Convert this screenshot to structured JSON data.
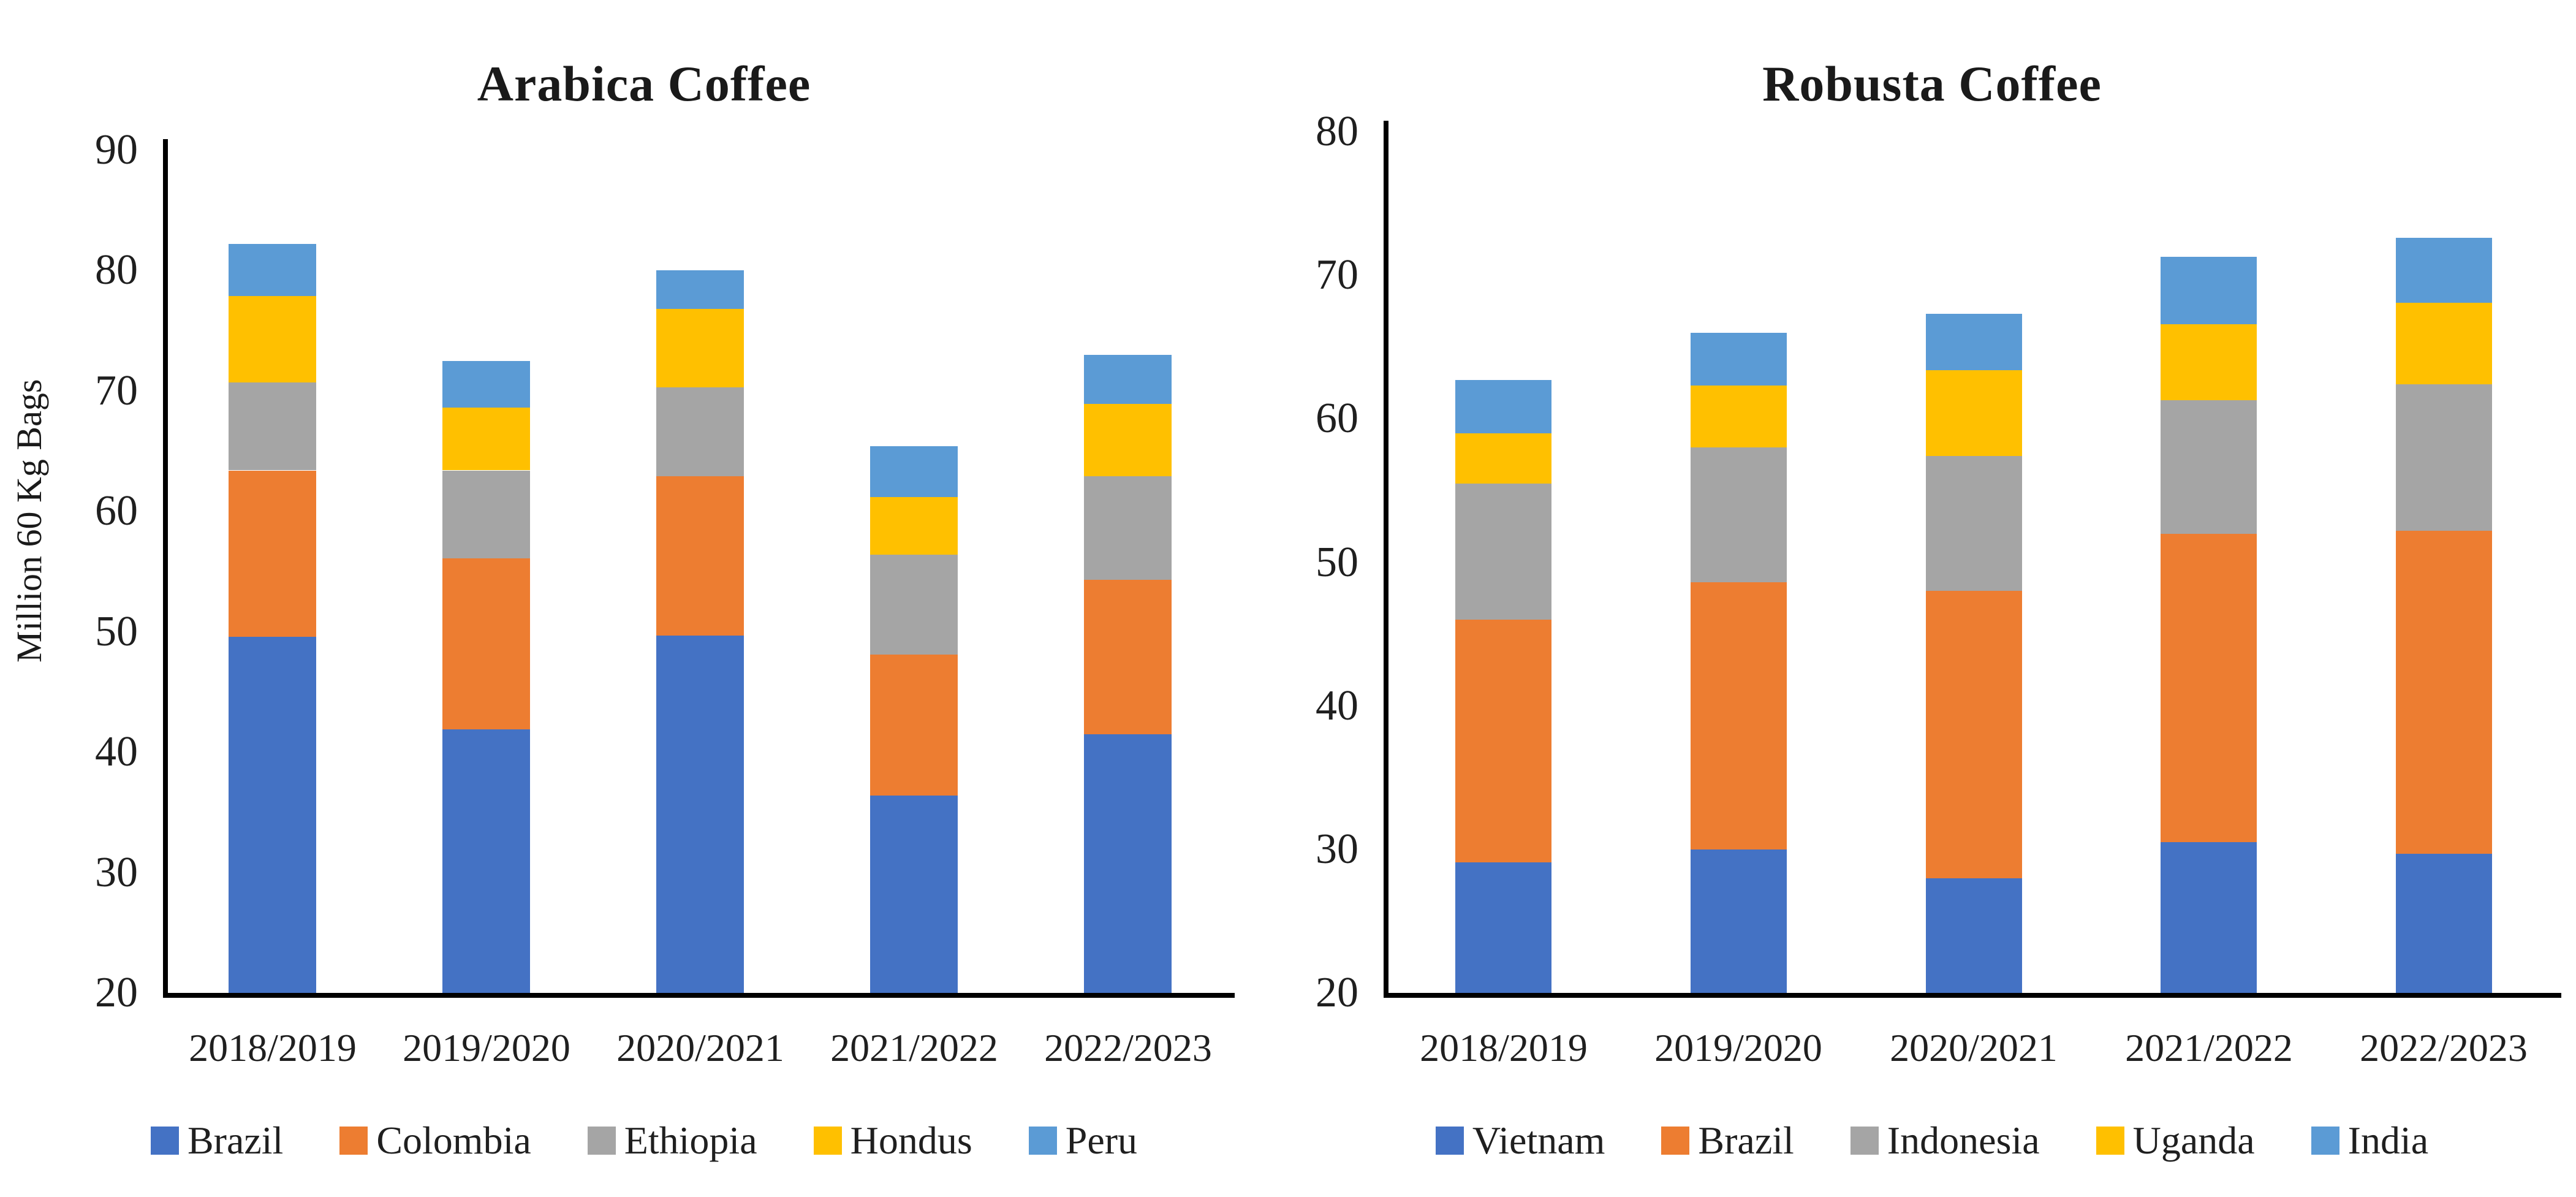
{
  "page": {
    "background": "#ffffff"
  },
  "chart_data": [
    {
      "type": "bar",
      "stacked": true,
      "title": "Arabica Coffee",
      "xlabel": "",
      "ylabel": "Million 60 Kg Bags",
      "ylim": [
        20,
        90
      ],
      "y_ticks": [
        90,
        80,
        70,
        60,
        50,
        40,
        30,
        20
      ],
      "grid": false,
      "legend_position": "bottom",
      "categories": [
        "2018/2019",
        "2019/2020",
        "2020/2021",
        "2021/2022",
        "2022/2023"
      ],
      "series": [
        {
          "name": "Brazil",
          "color": "#4472C4",
          "values": [
            49.6,
            41.9,
            49.7,
            36.4,
            41.5
          ]
        },
        {
          "name": "Colombia",
          "color": "#ED7D31",
          "values": [
            13.8,
            14.2,
            13.2,
            11.7,
            12.8
          ]
        },
        {
          "name": "Ethiopia",
          "color": "#A5A5A5",
          "values": [
            7.3,
            7.3,
            7.4,
            8.3,
            8.6
          ]
        },
        {
          "name": "Hondus",
          "color": "#FFC000",
          "values": [
            7.2,
            5.2,
            6.5,
            4.8,
            6.0
          ]
        },
        {
          "name": "Peru",
          "color": "#5B9BD5",
          "values": [
            4.3,
            3.9,
            3.2,
            4.2,
            4.1
          ]
        }
      ],
      "stack_totals": [
        82.2,
        72.5,
        80.0,
        65.4,
        73.0
      ]
    },
    {
      "type": "bar",
      "stacked": true,
      "title": "Robusta Coffee",
      "xlabel": "",
      "ylabel": "",
      "ylim": [
        20,
        80
      ],
      "y_ticks": [
        80,
        70,
        60,
        50,
        40,
        30,
        20
      ],
      "grid": false,
      "legend_position": "bottom",
      "categories": [
        "2018/2019",
        "2019/2020",
        "2020/2021",
        "2021/2022",
        "2022/2023"
      ],
      "series": [
        {
          "name": "Vietnam",
          "color": "#4472C4",
          "values": [
            29.1,
            30.0,
            28.0,
            30.5,
            29.7
          ]
        },
        {
          "name": "Brazil",
          "color": "#ED7D31",
          "values": [
            16.9,
            18.6,
            20.0,
            21.5,
            22.5
          ]
        },
        {
          "name": "Indonesia",
          "color": "#A5A5A5",
          "values": [
            9.5,
            9.4,
            9.4,
            9.3,
            10.2
          ]
        },
        {
          "name": "Uganda",
          "color": "#FFC000",
          "values": [
            3.5,
            4.3,
            6.0,
            5.3,
            5.7
          ]
        },
        {
          "name": "India",
          "color": "#5B9BD5",
          "values": [
            3.7,
            3.7,
            3.9,
            4.7,
            4.5
          ]
        }
      ],
      "stack_totals": [
        62.7,
        66.0,
        67.3,
        71.3,
        72.6
      ]
    }
  ]
}
